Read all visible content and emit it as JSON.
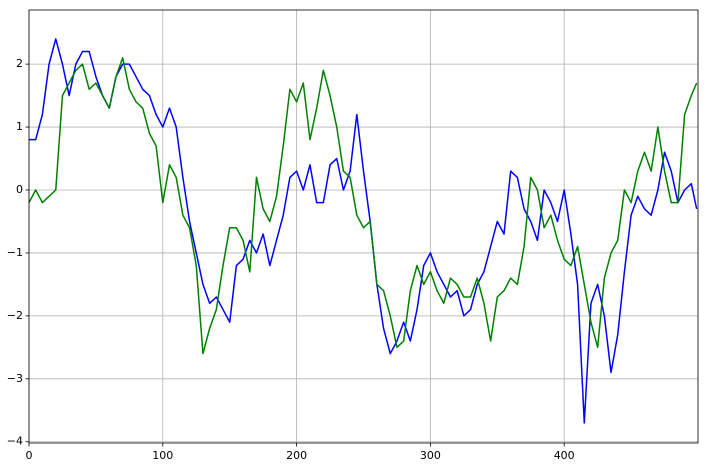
{
  "chart_data": {
    "type": "line",
    "x": [
      0,
      5,
      10,
      15,
      20,
      25,
      30,
      35,
      40,
      45,
      50,
      55,
      60,
      65,
      70,
      75,
      80,
      85,
      90,
      95,
      100,
      105,
      110,
      115,
      120,
      125,
      130,
      135,
      140,
      145,
      150,
      155,
      160,
      165,
      170,
      175,
      180,
      185,
      190,
      195,
      200,
      205,
      210,
      215,
      220,
      225,
      230,
      235,
      240,
      245,
      250,
      255,
      260,
      265,
      270,
      275,
      280,
      285,
      290,
      295,
      300,
      305,
      310,
      315,
      320,
      325,
      330,
      335,
      340,
      345,
      350,
      355,
      360,
      365,
      370,
      375,
      380,
      385,
      390,
      395,
      400,
      405,
      410,
      415,
      420,
      425,
      430,
      435,
      440,
      445,
      450,
      455,
      460,
      465,
      470,
      475,
      480,
      485,
      490,
      495,
      499
    ],
    "series": [
      {
        "color": "#0000ff",
        "values": [
          0.8,
          0.8,
          1.2,
          2.0,
          2.4,
          2.0,
          1.5,
          2.0,
          2.2,
          2.2,
          1.8,
          1.5,
          1.3,
          1.8,
          2.0,
          2.0,
          1.8,
          1.6,
          1.5,
          1.2,
          1.0,
          1.3,
          1.0,
          0.2,
          -0.5,
          -1.0,
          -1.5,
          -1.8,
          -1.7,
          -1.9,
          -2.1,
          -1.2,
          -1.1,
          -0.8,
          -1.0,
          -0.7,
          -1.2,
          -0.8,
          -0.4,
          0.2,
          0.3,
          0.0,
          0.4,
          -0.2,
          -0.2,
          0.4,
          0.5,
          0.0,
          0.3,
          1.2,
          0.3,
          -0.5,
          -1.5,
          -2.2,
          -2.6,
          -2.4,
          -2.1,
          -2.4,
          -1.9,
          -1.2,
          -1.0,
          -1.3,
          -1.5,
          -1.7,
          -1.6,
          -2.0,
          -1.9,
          -1.5,
          -1.3,
          -0.9,
          -0.5,
          -0.7,
          0.3,
          0.2,
          -0.3,
          -0.5,
          -0.8,
          0.0,
          -0.2,
          -0.5,
          0.0,
          -0.7,
          -1.5,
          -3.7,
          -1.8,
          -1.5,
          -2.0,
          -2.9,
          -2.3,
          -1.3,
          -0.4,
          -0.1,
          -0.3,
          -0.4,
          0.0,
          0.6,
          0.3,
          -0.2,
          0.0,
          0.1,
          -0.3
        ]
      },
      {
        "color": "#008000",
        "values": [
          -0.2,
          0.0,
          -0.2,
          -0.1,
          0.0,
          1.5,
          1.7,
          1.9,
          2.0,
          1.6,
          1.7,
          1.5,
          1.3,
          1.8,
          2.1,
          1.6,
          1.4,
          1.3,
          0.9,
          0.7,
          -0.2,
          0.4,
          0.2,
          -0.4,
          -0.6,
          -1.2,
          -2.6,
          -2.2,
          -1.9,
          -1.2,
          -0.6,
          -0.6,
          -0.8,
          -1.3,
          0.2,
          -0.3,
          -0.5,
          -0.1,
          0.7,
          1.6,
          1.4,
          1.7,
          0.8,
          1.3,
          1.9,
          1.5,
          1.0,
          0.3,
          0.2,
          -0.4,
          -0.6,
          -0.5,
          -1.5,
          -1.6,
          -2.0,
          -2.5,
          -2.4,
          -1.6,
          -1.2,
          -1.5,
          -1.3,
          -1.6,
          -1.8,
          -1.4,
          -1.5,
          -1.7,
          -1.7,
          -1.4,
          -1.8,
          -2.4,
          -1.7,
          -1.6,
          -1.4,
          -1.5,
          -0.9,
          0.2,
          0.0,
          -0.6,
          -0.4,
          -0.8,
          -1.1,
          -1.2,
          -0.9,
          -1.5,
          -2.1,
          -2.5,
          -1.4,
          -1.0,
          -0.8,
          0.0,
          -0.2,
          0.3,
          0.6,
          0.3,
          1.0,
          0.3,
          -0.2,
          -0.2,
          1.2,
          1.5,
          1.7
        ]
      }
    ],
    "xlim": [
      0,
      500
    ],
    "xticks": [
      0,
      100,
      200,
      300,
      400
    ],
    "ylim": [
      -4.02,
      2.86
    ],
    "yticks": [
      {
        "value": -4,
        "label": "−4"
      },
      {
        "value": -3,
        "label": "−3"
      },
      {
        "value": -2,
        "label": "−2"
      },
      {
        "value": -1,
        "label": "−1"
      },
      0,
      1,
      2
    ],
    "grid": true
  }
}
